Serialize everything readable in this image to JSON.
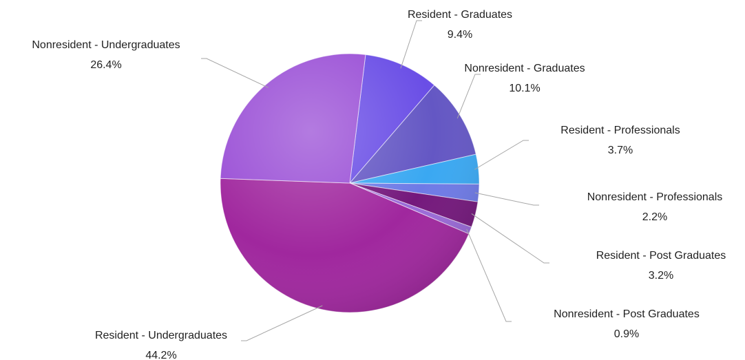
{
  "chart_data": {
    "type": "pie",
    "categories": [
      "Resident - Graduates",
      "Nonresident - Graduates",
      "Resident - Professionals",
      "Nonresident - Professionals",
      "Resident - Post Graduates",
      "Nonresident - Post Graduates",
      "Resident - Undergraduates",
      "Nonresident - Undergraduates"
    ],
    "values": [
      9.4,
      10.1,
      3.7,
      2.2,
      3.2,
      0.9,
      44.2,
      26.4
    ],
    "value_labels": [
      "9.4%",
      "10.1%",
      "3.7%",
      "2.2%",
      "3.2%",
      "0.9%",
      "44.2%",
      "26.4%"
    ],
    "colors": [
      "#6a4ee6",
      "#6457c4",
      "#3aa8f2",
      "#6e7ae6",
      "#74187c",
      "#9a6ad8",
      "#a0279e",
      "#9a4fd6"
    ]
  }
}
